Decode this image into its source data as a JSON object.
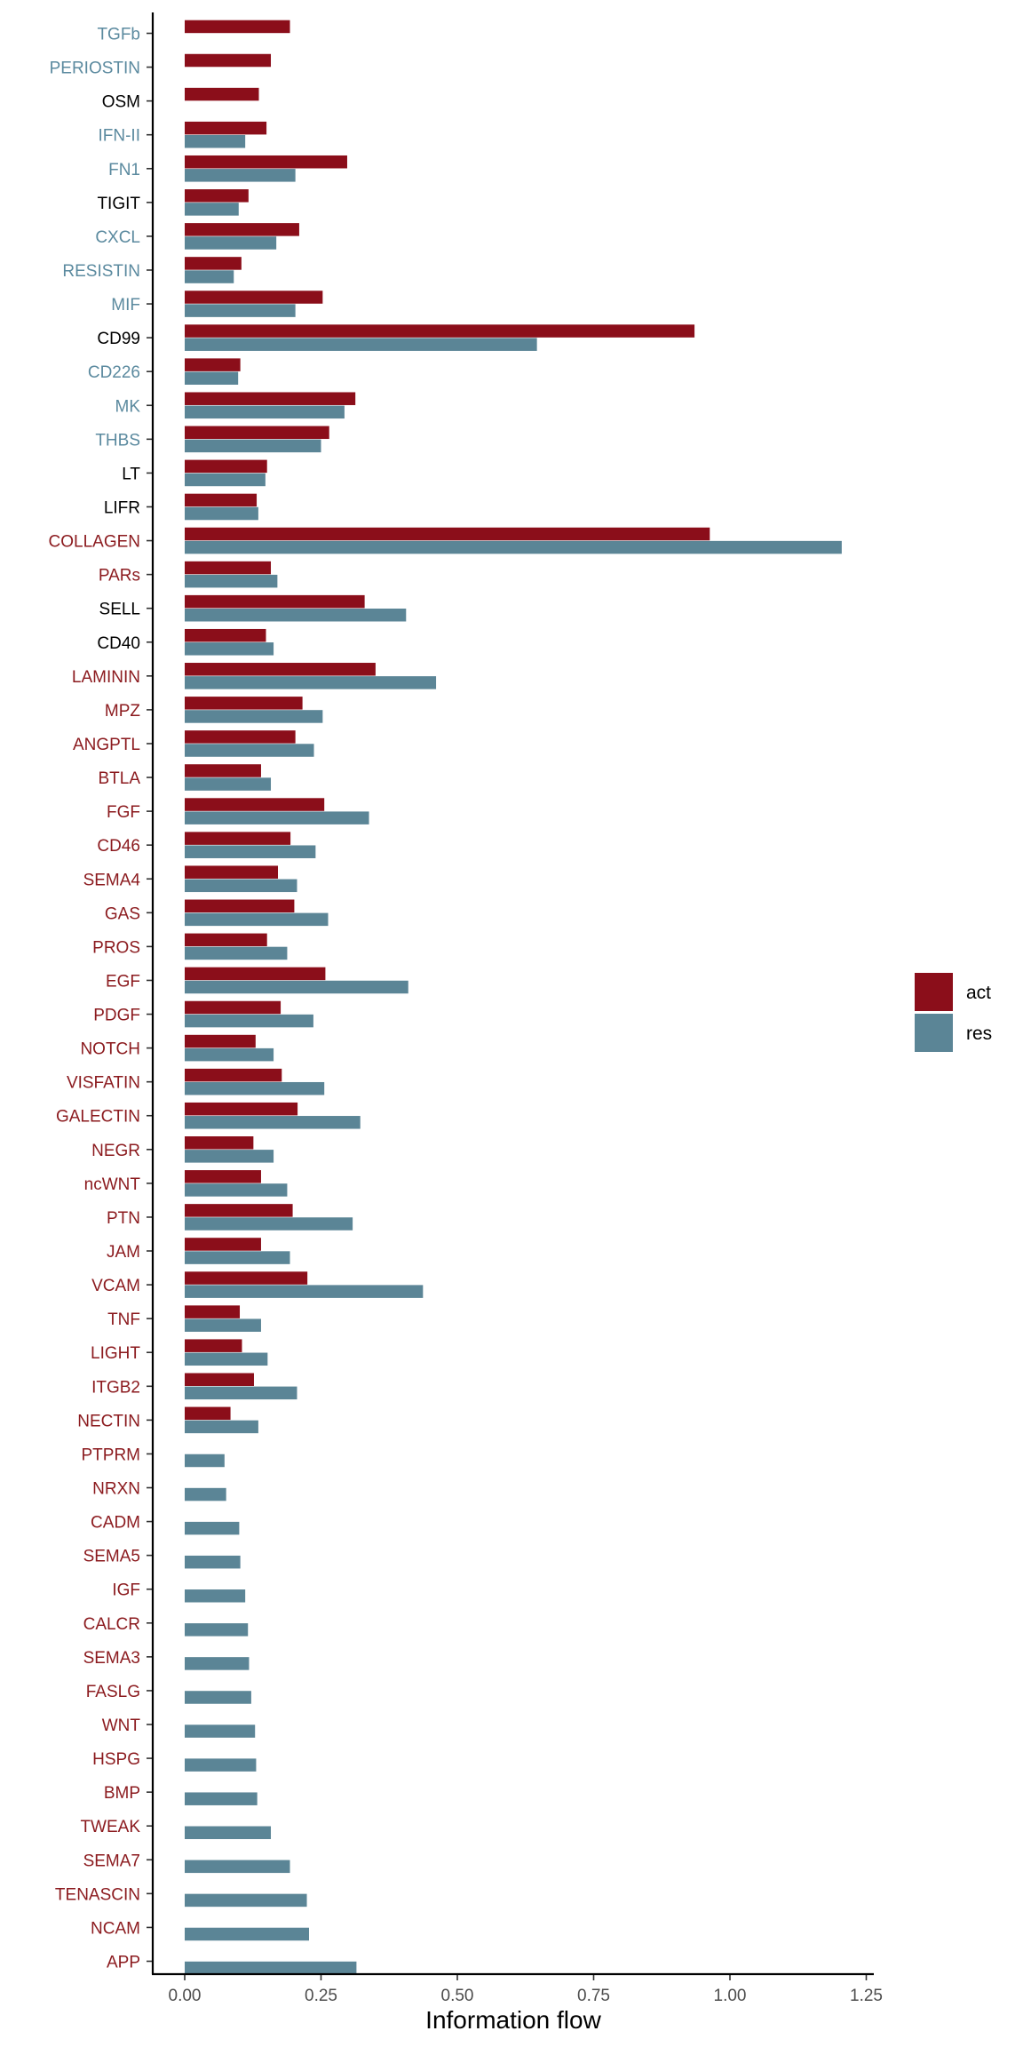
{
  "chart_data": {
    "type": "bar",
    "orientation": "horizontal",
    "xlabel": "Information flow",
    "ylabel": "",
    "xlim": [
      -0.06,
      1.27
    ],
    "x_ticks": [
      0.0,
      0.25,
      0.5,
      0.75,
      1.0,
      1.25
    ],
    "x_tick_labels": [
      "0.00",
      "0.25",
      "0.50",
      "0.75",
      "1.00",
      "1.25"
    ],
    "grid": false,
    "legend_position": "right",
    "label_colors": {
      "blue": "#5b8a9f",
      "black": "#000000",
      "red": "#8b1a1e"
    },
    "categories": [
      "TGFb",
      "PERIOSTIN",
      "OSM",
      "IFN-II",
      "FN1",
      "TIGIT",
      "CXCL",
      "RESISTIN",
      "MIF",
      "CD99",
      "CD226",
      "MK",
      "THBS",
      "LT",
      "LIFR",
      "COLLAGEN",
      "PARs",
      "SELL",
      "CD40",
      "LAMININ",
      "MPZ",
      "ANGPTL",
      "BTLA",
      "FGF",
      "CD46",
      "SEMA4",
      "GAS",
      "PROS",
      "EGF",
      "PDGF",
      "NOTCH",
      "VISFATIN",
      "GALECTIN",
      "NEGR",
      "ncWNT",
      "PTN",
      "JAM",
      "VCAM",
      "TNF",
      "LIGHT",
      "ITGB2",
      "NECTIN",
      "PTPRM",
      "NRXN",
      "CADM",
      "SEMA5",
      "IGF",
      "CALCR",
      "SEMA3",
      "FASLG",
      "WNT",
      "HSPG",
      "BMP",
      "TWEAK",
      "SEMA7",
      "TENASCIN",
      "NCAM",
      "APP"
    ],
    "category_label_color": [
      "blue",
      "blue",
      "black",
      "blue",
      "blue",
      "black",
      "blue",
      "blue",
      "blue",
      "black",
      "blue",
      "blue",
      "blue",
      "black",
      "black",
      "red",
      "red",
      "black",
      "black",
      "red",
      "red",
      "red",
      "red",
      "red",
      "red",
      "red",
      "red",
      "red",
      "red",
      "red",
      "red",
      "red",
      "red",
      "red",
      "red",
      "red",
      "red",
      "red",
      "red",
      "red",
      "red",
      "red",
      "red",
      "red",
      "red",
      "red",
      "red",
      "red",
      "red",
      "red",
      "red",
      "red",
      "red",
      "red",
      "red",
      "red",
      "red",
      "red"
    ],
    "series": [
      {
        "name": "act",
        "color": "#8b0e1a",
        "values": [
          0.193,
          0.158,
          0.136,
          0.15,
          0.298,
          0.117,
          0.21,
          0.104,
          0.253,
          0.935,
          0.102,
          0.313,
          0.265,
          0.151,
          0.132,
          0.963,
          0.158,
          0.33,
          0.149,
          0.35,
          0.216,
          0.203,
          0.14,
          0.256,
          0.194,
          0.171,
          0.201,
          0.151,
          0.258,
          0.176,
          0.13,
          0.178,
          0.207,
          0.126,
          0.14,
          0.198,
          0.14,
          0.225,
          0.101,
          0.105,
          0.127,
          0.084,
          null,
          null,
          null,
          null,
          null,
          null,
          null,
          null,
          null,
          null,
          null,
          null,
          null,
          null,
          null,
          null
        ]
      },
      {
        "name": "res",
        "color": "#5b8596",
        "values": [
          null,
          null,
          null,
          0.111,
          0.203,
          0.099,
          0.168,
          0.09,
          0.203,
          0.646,
          0.098,
          0.293,
          0.25,
          0.148,
          0.135,
          1.205,
          0.17,
          0.406,
          0.163,
          0.461,
          0.253,
          0.237,
          0.158,
          0.338,
          0.24,
          0.206,
          0.263,
          0.188,
          0.41,
          0.236,
          0.163,
          0.256,
          0.322,
          0.163,
          0.188,
          0.308,
          0.193,
          0.437,
          0.14,
          0.152,
          0.206,
          0.135,
          0.073,
          0.076,
          0.1,
          0.102,
          0.111,
          0.116,
          0.118,
          0.122,
          0.129,
          0.131,
          0.133,
          0.158,
          0.193,
          0.224,
          0.228,
          0.315
        ]
      }
    ]
  }
}
